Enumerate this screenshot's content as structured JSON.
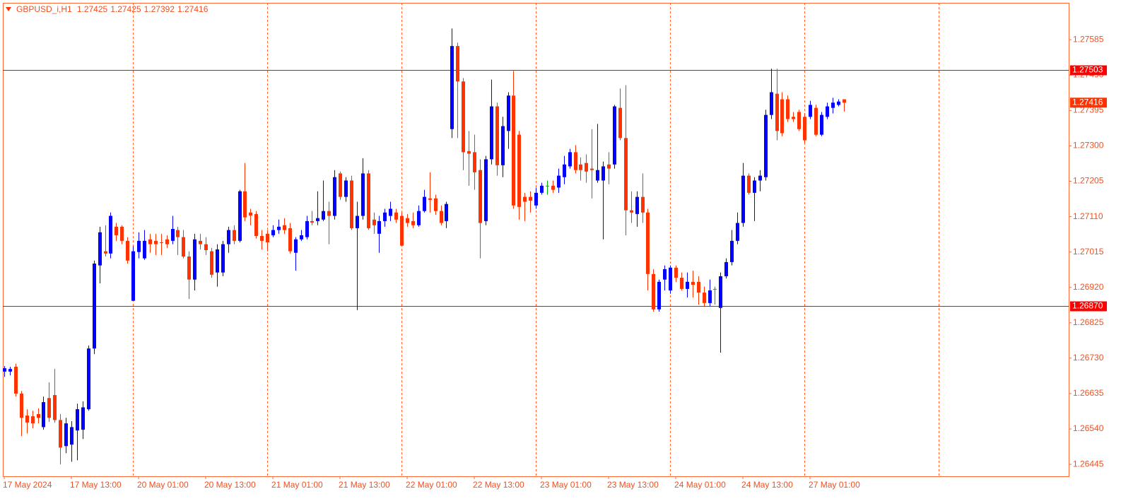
{
  "chart_data": {
    "type": "candlestick",
    "title": "GBPUSD_i,H1",
    "categories": [
      "17 May 2024",
      null,
      null,
      null,
      null,
      null,
      null,
      null,
      null,
      null,
      null,
      null,
      "17 May 13:00",
      null,
      null,
      null,
      null,
      null,
      null,
      null,
      null,
      null,
      null,
      null,
      "20 May 01:00",
      null,
      null,
      null,
      null,
      null,
      null,
      null,
      null,
      null,
      null,
      null,
      "20 May 13:00",
      null,
      null,
      null,
      null,
      null,
      null,
      null,
      null,
      null,
      null,
      null,
      "21 May 01:00",
      null,
      null,
      null,
      null,
      null,
      null,
      null,
      null,
      null,
      null,
      null,
      "21 May 13:00",
      null,
      null,
      null,
      null,
      null,
      null,
      null,
      null,
      null,
      null,
      null,
      "22 May 01:00",
      null,
      null,
      null,
      null,
      null,
      null,
      null,
      null,
      null,
      null,
      null,
      "22 May 13:00",
      null,
      null,
      null,
      null,
      null,
      null,
      null,
      null,
      null,
      null,
      null,
      "23 May 01:00",
      null,
      null,
      null,
      null,
      null,
      null,
      null,
      null,
      null,
      null,
      null,
      "23 May 13:00",
      null,
      null,
      null,
      null,
      null,
      null,
      null,
      null,
      null,
      null,
      null,
      "24 May 01:00",
      null,
      null,
      null,
      null,
      null,
      null,
      null,
      null,
      null,
      null,
      null,
      "24 May 13:00",
      null,
      null,
      null,
      null,
      null,
      null,
      null,
      null,
      null,
      null,
      null,
      "27 May 01:00",
      null,
      null,
      null,
      null,
      null,
      null
    ],
    "values": [
      [
        1.26694,
        1.26709,
        1.2668,
        1.26703
      ],
      [
        1.26694,
        1.26707,
        1.26684,
        1.26701
      ],
      [
        1.26707,
        1.26715,
        1.26627,
        1.26635
      ],
      [
        1.26635,
        1.26642,
        1.26521,
        1.2657
      ],
      [
        1.26576,
        1.26593,
        1.26528,
        1.26557
      ],
      [
        1.26574,
        1.26589,
        1.26542,
        1.26555
      ],
      [
        1.2658,
        1.26595,
        1.26555,
        1.2657
      ],
      [
        1.26545,
        1.26627,
        1.26538,
        1.26612
      ],
      [
        1.26623,
        1.26665,
        1.26559,
        1.2657
      ],
      [
        1.26631,
        1.26701,
        1.26557,
        1.26564
      ],
      [
        1.26564,
        1.2658,
        1.26445,
        1.2649
      ],
      [
        1.26494,
        1.2657,
        1.26475,
        1.26555
      ],
      [
        1.26498,
        1.26561,
        1.26452,
        1.26545
      ],
      [
        1.26536,
        1.26608,
        1.26456,
        1.26593
      ],
      [
        1.26538,
        1.26614,
        1.26513,
        1.26598
      ],
      [
        1.26593,
        1.26764,
        1.26589,
        1.26756
      ],
      [
        1.26756,
        1.26992,
        1.26741,
        1.26984
      ],
      [
        1.26979,
        1.27083,
        1.26931,
        1.27068
      ],
      [
        1.27017,
        1.27087,
        1.27003,
        1.27011
      ],
      [
        1.27011,
        1.27121,
        1.26998,
        1.27112
      ],
      [
        1.27083,
        1.27093,
        1.27045,
        1.2706
      ],
      [
        1.27083,
        1.27087,
        1.27036,
        1.27045
      ],
      [
        1.27045,
        1.27055,
        1.26984,
        1.26992
      ],
      [
        1.26884,
        1.2703,
        1.26884,
        1.27017
      ],
      [
        1.27015,
        1.27068,
        1.26998,
        1.27045
      ],
      [
        1.26998,
        1.27074,
        1.26994,
        1.27045
      ],
      [
        1.27049,
        1.27064,
        1.27013,
        1.27036
      ],
      [
        1.27045,
        1.27064,
        1.27007,
        1.27036
      ],
      [
        1.27041,
        1.27064,
        1.27007,
        1.27039
      ],
      [
        1.27049,
        1.2706,
        1.27026,
        1.27036
      ],
      [
        1.27045,
        1.27112,
        1.27036,
        1.27077
      ],
      [
        1.27074,
        1.27083,
        1.27007,
        1.27055
      ],
      [
        1.27055,
        1.27074,
        1.26998,
        1.27003
      ],
      [
        1.27003,
        1.27017,
        1.26889,
        1.26941
      ],
      [
        1.26941,
        1.27064,
        1.26912,
        1.27049
      ],
      [
        1.27045,
        1.27064,
        1.27022,
        1.27036
      ],
      [
        1.27036,
        1.27055,
        1.27007,
        1.2702
      ],
      [
        1.27017,
        1.27026,
        1.26946,
        1.26954
      ],
      [
        1.2696,
        1.27036,
        1.26922,
        1.27022
      ],
      [
        1.2696,
        1.27045,
        1.2695,
        1.27036
      ],
      [
        1.27036,
        1.27083,
        1.27013,
        1.27074
      ],
      [
        1.27074,
        1.27087,
        1.27036,
        1.27045
      ],
      [
        1.27045,
        1.27182,
        1.27041,
        1.27178
      ],
      [
        1.27178,
        1.27254,
        1.27098,
        1.27108
      ],
      [
        1.27121,
        1.27131,
        1.27087,
        1.27113
      ],
      [
        1.27117,
        1.27125,
        1.27051,
        1.27058
      ],
      [
        1.27058,
        1.27074,
        1.27022,
        1.27045
      ],
      [
        1.27064,
        1.27074,
        1.27017,
        1.27041
      ],
      [
        1.2706,
        1.27087,
        1.27055,
        1.27074
      ],
      [
        1.27074,
        1.27102,
        1.27064,
        1.27083
      ],
      [
        1.27087,
        1.27106,
        1.27064,
        1.27074
      ],
      [
        1.27079,
        1.27093,
        1.27011,
        1.27017
      ],
      [
        1.27013,
        1.27055,
        1.26965,
        1.27049
      ],
      [
        1.27049,
        1.27074,
        1.27045,
        1.2706
      ],
      [
        1.27055,
        1.27112,
        1.27049,
        1.27098
      ],
      [
        1.27098,
        1.27125,
        1.27087,
        1.27094
      ],
      [
        1.27098,
        1.27178,
        1.27087,
        1.27106
      ],
      [
        1.27102,
        1.27207,
        1.27098,
        1.27125
      ],
      [
        1.27125,
        1.2715,
        1.27036,
        1.27112
      ],
      [
        1.27112,
        1.27235,
        1.27102,
        1.27216
      ],
      [
        1.27226,
        1.27231,
        1.27155,
        1.27163
      ],
      [
        1.27163,
        1.27216,
        1.2715,
        1.27207
      ],
      [
        1.27207,
        1.2722,
        1.27074,
        1.27079
      ],
      [
        1.27079,
        1.2715,
        1.26859,
        1.27112
      ],
      [
        1.27112,
        1.27267,
        1.27102,
        1.27226
      ],
      [
        1.27226,
        1.27235,
        1.27074,
        1.27079
      ],
      [
        1.27102,
        1.27121,
        1.27064,
        1.27087
      ],
      [
        1.27064,
        1.27112,
        1.27013,
        1.27098
      ],
      [
        1.27098,
        1.27131,
        1.27083,
        1.27121
      ],
      [
        1.27112,
        1.2715,
        1.27098,
        1.27131
      ],
      [
        1.27121,
        1.27131,
        1.27093,
        1.27102
      ],
      [
        1.27112,
        1.27121,
        1.2703,
        1.27032
      ],
      [
        1.27106,
        1.27117,
        1.27083,
        1.27093
      ],
      [
        1.27098,
        1.27121,
        1.27079,
        1.27087
      ],
      [
        1.27087,
        1.2714,
        1.27083,
        1.27125
      ],
      [
        1.27125,
        1.27182,
        1.27121,
        1.27163
      ],
      [
        1.27159,
        1.27229,
        1.27121,
        1.27155
      ],
      [
        1.27159,
        1.27169,
        1.27115,
        1.27125
      ],
      [
        1.27125,
        1.2714,
        1.27087,
        1.27093
      ],
      [
        1.27098,
        1.2715,
        1.27079,
        1.27144
      ],
      [
        1.27345,
        1.27615,
        1.27321,
        1.27568
      ],
      [
        1.27568,
        1.27577,
        1.27321,
        1.27473
      ],
      [
        1.27473,
        1.27482,
        1.27235,
        1.27283
      ],
      [
        1.27286,
        1.2734,
        1.27193,
        1.27279
      ],
      [
        1.27283,
        1.2733,
        1.27182,
        1.27229
      ],
      [
        1.27235,
        1.27264,
        1.26998,
        1.27093
      ],
      [
        1.27098,
        1.27273,
        1.27087,
        1.27264
      ],
      [
        1.27264,
        1.27478,
        1.2725,
        1.27406
      ],
      [
        1.27406,
        1.27416,
        1.2722,
        1.27248
      ],
      [
        1.27248,
        1.27378,
        1.27216,
        1.27353
      ],
      [
        1.2734,
        1.27444,
        1.27292,
        1.27435
      ],
      [
        1.27435,
        1.27501,
        1.27131,
        1.2714
      ],
      [
        1.2733,
        1.2734,
        1.27102,
        1.27136
      ],
      [
        1.27163,
        1.27174,
        1.27098,
        1.2715
      ],
      [
        1.27163,
        1.27178,
        1.27121,
        1.27153
      ],
      [
        1.2714,
        1.27188,
        1.27131,
        1.27174
      ],
      [
        1.27174,
        1.27201,
        1.27169,
        1.27193
      ],
      [
        1.27193,
        1.27207,
        1.27169,
        1.27193
      ],
      [
        1.27193,
        1.27207,
        1.27174,
        1.27182
      ],
      [
        1.27188,
        1.27239,
        1.27174,
        1.2722
      ],
      [
        1.27216,
        1.27273,
        1.27197,
        1.2725
      ],
      [
        1.27245,
        1.27292,
        1.27239,
        1.27283
      ],
      [
        1.27283,
        1.27302,
        1.27226,
        1.27235
      ],
      [
        1.2725,
        1.27269,
        1.27207,
        1.27235
      ],
      [
        1.27254,
        1.27277,
        1.27201,
        1.27231
      ],
      [
        1.27239,
        1.27345,
        1.27159,
        1.27235
      ],
      [
        1.27207,
        1.27359,
        1.27201,
        1.27235
      ],
      [
        1.27207,
        1.27258,
        1.27049,
        1.27245
      ],
      [
        1.2725,
        1.27283,
        1.27197,
        1.27239
      ],
      [
        1.2725,
        1.2741,
        1.27239,
        1.27406
      ],
      [
        1.27402,
        1.27454,
        1.27315,
        1.27321
      ],
      [
        1.27321,
        1.27463,
        1.2706,
        1.27127
      ],
      [
        1.27127,
        1.27178,
        1.27093,
        1.27121
      ],
      [
        1.27117,
        1.27178,
        1.27083,
        1.27163
      ],
      [
        1.27163,
        1.27226,
        1.27093,
        1.27121
      ],
      [
        1.27121,
        1.27131,
        1.26912,
        1.26956
      ],
      [
        1.26956,
        1.26969,
        1.26855,
        1.26861
      ],
      [
        1.26861,
        1.26941,
        1.26855,
        1.26935
      ],
      [
        1.26941,
        1.26979,
        1.26912,
        1.26969
      ],
      [
        1.26912,
        1.26979,
        1.26903,
        1.26973
      ],
      [
        1.26973,
        1.26979,
        1.26935,
        1.26946
      ],
      [
        1.26946,
        1.2696,
        1.26912,
        1.26916
      ],
      [
        1.26916,
        1.2696,
        1.26893,
        1.26935
      ],
      [
        1.26935,
        1.26965,
        1.26893,
        1.26927
      ],
      [
        1.26935,
        1.2695,
        1.26874,
        1.26906
      ],
      [
        1.26906,
        1.26922,
        1.2687,
        1.26878
      ],
      [
        1.26878,
        1.26941,
        1.2687,
        1.26912
      ],
      [
        1.26916,
        1.26922,
        1.26874,
        1.26916
      ],
      [
        1.26865,
        1.2696,
        1.26745,
        1.2695
      ],
      [
        1.2695,
        1.26998,
        1.26944,
        1.26988
      ],
      [
        1.26988,
        1.27074,
        1.26979,
        1.27045
      ],
      [
        1.27045,
        1.27121,
        1.27036,
        1.27093
      ],
      [
        1.27093,
        1.27254,
        1.27083,
        1.2722
      ],
      [
        1.2722,
        1.27226,
        1.27169,
        1.27174
      ],
      [
        1.27174,
        1.27216,
        1.27098,
        1.27207
      ],
      [
        1.27207,
        1.27235,
        1.27178,
        1.2722
      ],
      [
        1.27216,
        1.27397,
        1.27207,
        1.27383
      ],
      [
        1.27383,
        1.27507,
        1.27372,
        1.27444
      ],
      [
        1.2744,
        1.27507,
        1.27315,
        1.2734
      ],
      [
        1.27425,
        1.27444,
        1.27326,
        1.27334
      ],
      [
        1.27425,
        1.27435,
        1.27364,
        1.27372
      ],
      [
        1.27378,
        1.27391,
        1.27364,
        1.27372
      ],
      [
        1.27391,
        1.27397,
        1.2734,
        1.27345
      ],
      [
        1.27378,
        1.27387,
        1.27307,
        1.27315
      ],
      [
        1.27378,
        1.27421,
        1.27372,
        1.2741
      ],
      [
        1.27402,
        1.2741,
        1.27326,
        1.2733
      ],
      [
        1.2733,
        1.27391,
        1.27326,
        1.27383
      ],
      [
        1.27378,
        1.27416,
        1.27372,
        1.27406
      ],
      [
        1.27402,
        1.27429,
        1.27387,
        1.27416
      ],
      [
        1.2741,
        1.27425,
        1.27406,
        1.27419
      ],
      [
        1.27425,
        1.27425,
        1.27392,
        1.27416
      ]
    ],
    "bull_color": "#0000ff",
    "bear_color": "#ff3300",
    "doji_color": "#00b000",
    "ylim": [
      1.26413,
      1.27684
    ],
    "yticks": [
      1.27585,
      {
        "value": 1.2749,
        "label": "1.27490"
      },
      1.27395,
      {
        "value": 1.273,
        "label": "1.27300"
      },
      1.27205,
      {
        "value": 1.2711,
        "label": "1.27110"
      },
      1.27015,
      {
        "value": 1.2692,
        "label": "1.26920"
      },
      1.26825,
      {
        "value": 1.2673,
        "label": "1.26730"
      },
      1.26635,
      {
        "value": 1.2654,
        "label": "1.26540"
      },
      1.26445
    ],
    "hlines": [
      1.27503,
      {
        "value": 1.2687,
        "label": "1.26870"
      }
    ],
    "hline_color": "#ff0000",
    "period_separators": true
  }
}
